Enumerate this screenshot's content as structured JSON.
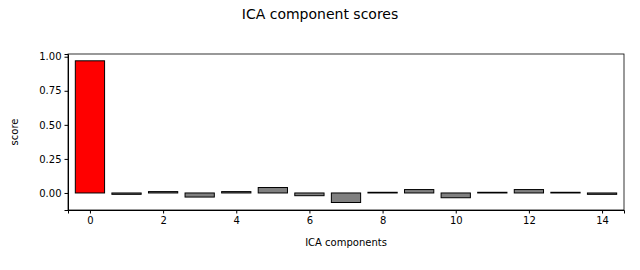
{
  "chart_data": {
    "type": "bar",
    "title": "ICA component scores",
    "x_label": "ICA components",
    "y_label": "score",
    "x": [
      0,
      1,
      2,
      3,
      4,
      5,
      6,
      7,
      8,
      9,
      10,
      11,
      12,
      13,
      14
    ],
    "values": [
      0.97,
      -0.01,
      0.01,
      -0.03,
      0.01,
      0.04,
      -0.02,
      -0.07,
      0.005,
      0.025,
      -0.035,
      0.005,
      0.025,
      0.005,
      -0.01
    ],
    "colors": [
      "#ff0000",
      "#808080",
      "#808080",
      "#808080",
      "#808080",
      "#808080",
      "#808080",
      "#808080",
      "#808080",
      "#808080",
      "#808080",
      "#808080",
      "#808080",
      "#808080",
      "#808080"
    ],
    "xlim": [
      -0.6,
      14.6
    ],
    "ylim": [
      -0.125,
      1.02
    ],
    "xticks": [
      0,
      2,
      4,
      6,
      8,
      10,
      12,
      14
    ],
    "yticks": [
      {
        "value": 0,
        "label": "0.00"
      },
      {
        "value": 0.25,
        "label": "0.25"
      },
      {
        "value": 0.5,
        "label": "0.50"
      },
      {
        "value": 0.75,
        "label": "0.75"
      },
      {
        "value": 1,
        "label": "1.00"
      }
    ],
    "grid": false
  }
}
